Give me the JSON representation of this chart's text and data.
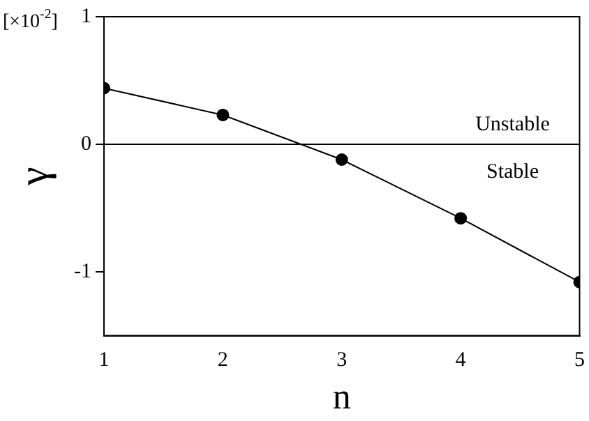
{
  "chart_data": {
    "type": "line",
    "xlabel": "n",
    "ylabel": "γ",
    "x": [
      1,
      2,
      3,
      4,
      5
    ],
    "series": [
      {
        "color": "#000000",
        "values": [
          0.44,
          0.23,
          -0.12,
          -0.58,
          -1.08
        ]
      }
    ],
    "xlim": [
      1,
      5
    ],
    "xticks": [
      1,
      2,
      3,
      4,
      5
    ],
    "ylim": [
      -1.5,
      1
    ],
    "yticks": [
      -1,
      0,
      1
    ],
    "ref_lines": [
      {
        "axis": "y",
        "value": 0,
        "color": "#000000"
      }
    ],
    "annotations": [
      "[×10$^{-2}$]",
      "Unstable",
      "Stable"
    ],
    "marker": "circle",
    "line_style": "solid",
    "grid": false,
    "legend": false
  }
}
